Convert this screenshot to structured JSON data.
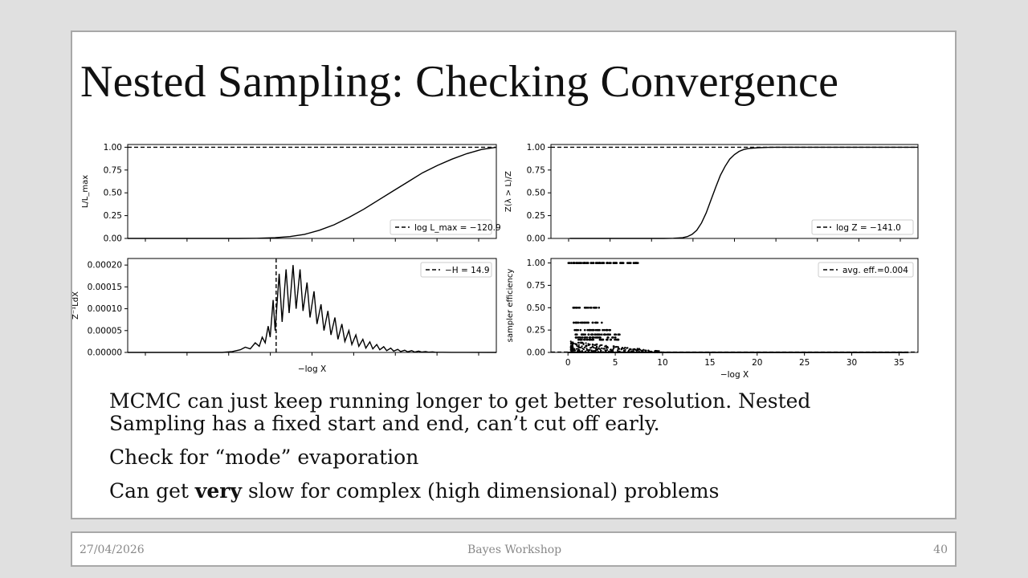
{
  "slide": {
    "title": "Nested Sampling: Checking Convergence",
    "bullets": {
      "b1": "MCMC can just keep running longer to get better resolution. Nested Sampling has a fixed start and end, can’t cut off early.",
      "b2": "Check for “mode” evaporation",
      "b3_pre": "Can get ",
      "b3_bold": "very",
      "b3_post": " slow for complex (high dimensional) problems"
    }
  },
  "footer": {
    "date": "27/04/2026",
    "center": "Bayes Workshop",
    "page": "40"
  },
  "chart_data": [
    {
      "type": "line",
      "ylabel": "L/L_max",
      "yticks": [
        "0.00",
        "0.25",
        "0.50",
        "0.75",
        "1.00"
      ],
      "ylim": [
        0,
        1.03
      ],
      "legend": "log L_max = −120.9",
      "legend_position": "bottom-right",
      "reference_line": {
        "y": 1.0,
        "style": "dashed"
      },
      "x": [
        0,
        10,
        20,
        30,
        35,
        40,
        44,
        48,
        52,
        56,
        60,
        64,
        68,
        72,
        76,
        80,
        84,
        88,
        92,
        96,
        100
      ],
      "y": [
        0,
        0,
        0,
        0,
        0.002,
        0.008,
        0.02,
        0.045,
        0.09,
        0.15,
        0.23,
        0.32,
        0.42,
        0.52,
        0.62,
        0.72,
        0.8,
        0.87,
        0.93,
        0.975,
        1.0
      ]
    },
    {
      "type": "line",
      "ylabel": "Z(λ > L)/Z",
      "yticks": [
        "0.00",
        "0.25",
        "0.50",
        "0.75",
        "1.00"
      ],
      "ylim": [
        0,
        1.03
      ],
      "legend": "log Z = −141.0",
      "legend_position": "bottom-right",
      "reference_line": {
        "y": 1.0,
        "style": "dashed"
      },
      "x": [
        0,
        10,
        11,
        12,
        12.5,
        13,
        13.5,
        14,
        14.5,
        15,
        15.5,
        16,
        16.5,
        17,
        17.5,
        18,
        18.5,
        19,
        20,
        21,
        22,
        25,
        37
      ],
      "y": [
        0,
        0,
        0.002,
        0.008,
        0.02,
        0.045,
        0.09,
        0.17,
        0.28,
        0.42,
        0.56,
        0.69,
        0.79,
        0.87,
        0.92,
        0.955,
        0.975,
        0.987,
        0.995,
        0.998,
        1.0,
        1.0,
        1.0
      ]
    },
    {
      "type": "line",
      "ylabel": "Z⁻¹LdX",
      "xlabel": "−log X",
      "yticks": [
        "0.00000",
        "0.00005",
        "0.00010",
        "0.00015",
        "0.00020"
      ],
      "ylim": [
        0,
        0.000215
      ],
      "legend": "−H = 14.9",
      "legend_position": "top-right",
      "reference_line": {
        "x": 14.9,
        "style": "dashed"
      },
      "x": [
        0,
        9.5,
        10.5,
        11.3,
        11.8,
        12.3,
        12.8,
        13.2,
        13.5,
        13.8,
        14.1,
        14.3,
        14.6,
        14.8,
        15.2,
        15.5,
        15.9,
        16.2,
        16.6,
        16.9,
        17.3,
        17.6,
        18.0,
        18.3,
        18.7,
        19.0,
        19.4,
        19.7,
        20.1,
        20.4,
        20.8,
        21.1,
        21.5,
        21.8,
        22.2,
        22.5,
        22.9,
        23.2,
        23.6,
        23.9,
        24.3,
        24.6,
        25.0,
        25.3,
        25.7,
        26.0,
        26.4,
        26.7,
        27.1,
        27.4,
        27.8,
        28.1,
        28.5,
        28.8,
        29.2,
        29.5,
        29.9,
        30.2,
        30.6,
        30.9,
        31.6,
        32.5,
        34,
        37
      ],
      "y": [
        0,
        0,
        2e-06,
        6e-06,
        1.2e-05,
        8e-06,
        2.2e-05,
        1.4e-05,
        3.5e-05,
        2.2e-05,
        6e-05,
        3.5e-05,
        0.00012,
        5e-05,
        0.00018,
        7e-05,
        0.00019,
        9e-05,
        0.0002,
        0.0001,
        0.00019,
        9.5e-05,
        0.00016,
        8e-05,
        0.00014,
        6.5e-05,
        0.00011,
        5e-05,
        9.5e-05,
        4e-05,
        8e-05,
        3e-05,
        6.5e-05,
        2.5e-05,
        5e-05,
        1.8e-05,
        4e-05,
        1.4e-05,
        3e-05,
        1e-05,
        2.4e-05,
        8e-06,
        1.8e-05,
        6e-06,
        1.3e-05,
        4e-06,
        1e-05,
        3e-06,
        7e-06,
        2e-06,
        5e-06,
        1.5e-06,
        4e-06,
        1e-06,
        3e-06,
        8e-07,
        2e-06,
        6e-07,
        1.2e-06,
        4e-07,
        3e-07,
        2e-07,
        1e-07,
        0
      ]
    },
    {
      "type": "scatter",
      "ylabel": "sampler efficiency",
      "xlabel": "−log X",
      "xticks": [
        "0",
        "5",
        "10",
        "15",
        "20",
        "25",
        "30",
        "35"
      ],
      "yticks": [
        "0.00",
        "0.25",
        "0.50",
        "0.75",
        "1.00"
      ],
      "xlim": [
        -1.8,
        37
      ],
      "ylim": [
        0,
        1.05
      ],
      "legend": "avg. eff.=0.004",
      "legend_position": "top-right",
      "reference_line": {
        "y": 0.004,
        "style": "dashed"
      },
      "bands": [
        {
          "y": 1.0,
          "x_start": 0.0,
          "x_end": 7.5,
          "density": 0.9
        },
        {
          "y": 0.5,
          "x_start": 0.5,
          "x_end": 3.3,
          "density": 0.7
        },
        {
          "y": 0.333,
          "x_start": 0.6,
          "x_end": 3.8,
          "density": 0.6
        },
        {
          "y": 0.25,
          "x_start": 0.6,
          "x_end": 4.5,
          "density": 0.6
        },
        {
          "y": 0.2,
          "x_start": 0.7,
          "x_end": 5.5,
          "density": 0.5
        },
        {
          "y": 0.167,
          "x_start": 0.7,
          "x_end": 5.5,
          "density": 0.5
        },
        {
          "y": 0.143,
          "x_start": 0.7,
          "x_end": 5.5,
          "density": 0.5
        }
      ],
      "cloud": {
        "x_start": 0.3,
        "x_end": 10,
        "y_max": 0.125
      },
      "baseline": {
        "y": 0.0,
        "x_start": 0,
        "x_end": 36
      }
    }
  ]
}
